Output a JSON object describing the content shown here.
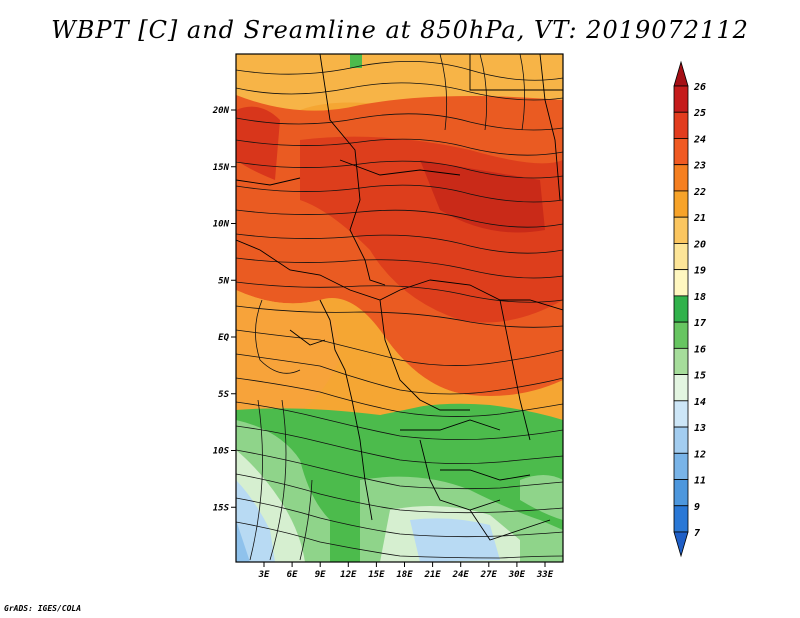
{
  "title": "WBPT [C] and Sreamline at 850hPa, VT: 2019072112",
  "credit": "GrADS: IGES/COLA",
  "lat_labels": [
    "20N",
    "15N",
    "10N",
    "5N",
    "EQ",
    "5S",
    "10S",
    "15S"
  ],
  "lon_labels": [
    "3E",
    "6E",
    "9E",
    "12E",
    "15E",
    "18E",
    "21E",
    "24E",
    "27E",
    "30E",
    "33E"
  ],
  "colorbar": {
    "labels": [
      "26",
      "25",
      "24",
      "23",
      "22",
      "21",
      "20",
      "19",
      "18",
      "17",
      "16",
      "15",
      "14",
      "13",
      "12",
      "11",
      "9",
      "7"
    ],
    "colors": [
      "#a50f15",
      "#c51b1b",
      "#e23c1e",
      "#f05a22",
      "#f57f20",
      "#f7a329",
      "#fbc660",
      "#fde598",
      "#fff7c0",
      "#31b24b",
      "#67c561",
      "#a6dd9b",
      "#e3f5e1",
      "#cde6f7",
      "#a3cdf0",
      "#79b4e8",
      "#4d97dd",
      "#2a78d6",
      "#1f5fc7"
    ]
  },
  "map_colors": {
    "hot": "#e0401e",
    "warm": "#f08020",
    "orange": "#f5a030",
    "yellow": "#fbd070",
    "green": "#4cbb4c",
    "lightgreen": "#8fd48a",
    "palegreen": "#d6efd0",
    "lightblue": "#b8daf3",
    "blue": "#8fc2ec"
  }
}
